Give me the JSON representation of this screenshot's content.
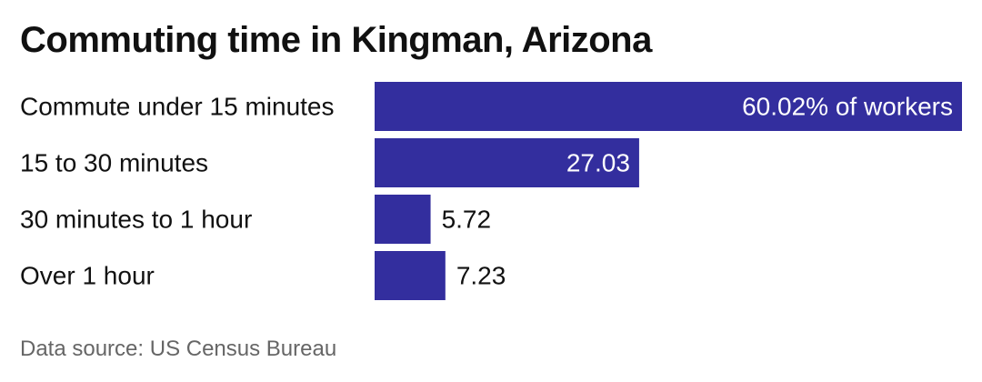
{
  "chart_data": {
    "type": "bar",
    "orientation": "horizontal",
    "title": "Commuting time in Kingman, Arizona",
    "categories": [
      "Commute under 15 minutes",
      "15 to 30 minutes",
      "30 minutes to 1 hour",
      "Over 1 hour"
    ],
    "values": [
      60.02,
      27.03,
      5.72,
      7.23
    ],
    "value_labels": [
      "60.02% of workers",
      "27.03",
      "5.72",
      "7.23"
    ],
    "unit": "% of workers",
    "xlim": [
      0,
      60.02
    ],
    "grid": false,
    "legend": "none",
    "bar_color": "#332E9E"
  },
  "source": "Data source: US Census Bureau"
}
